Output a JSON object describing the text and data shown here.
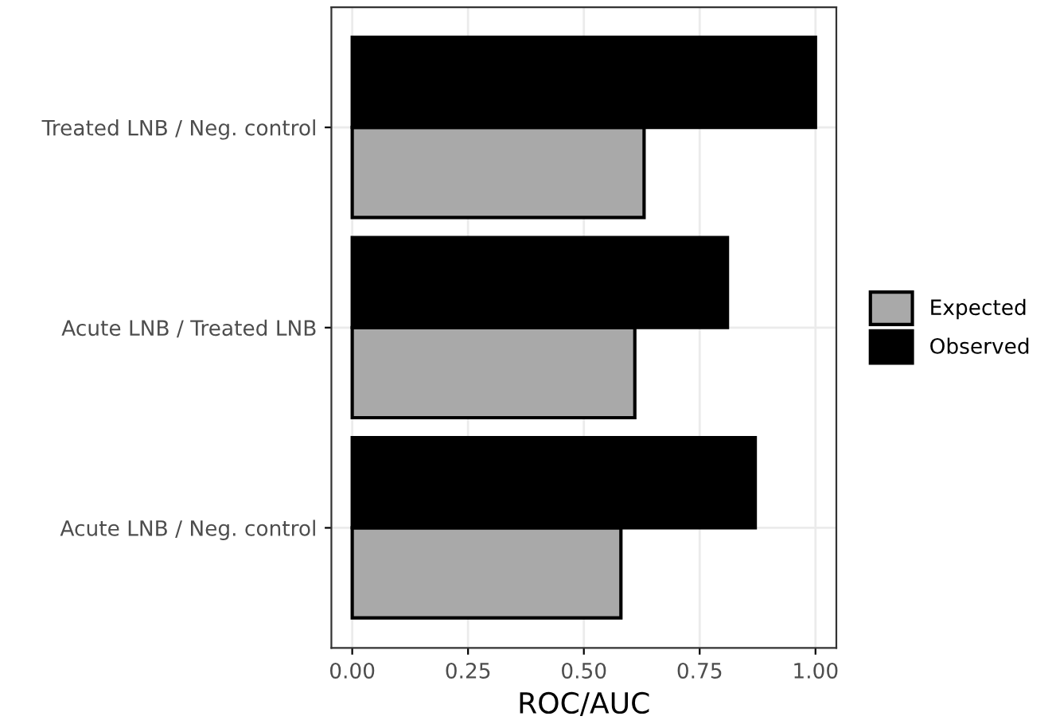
{
  "chart_data": {
    "type": "bar",
    "orientation": "horizontal",
    "xlabel": "ROC/AUC",
    "categories": [
      "Treated LNB / Neg. control",
      "Acute LNB / Treated LNB",
      "Acute LNB / Neg. control"
    ],
    "series": [
      {
        "name": "Expected",
        "color": "#a9a9a9",
        "values": [
          0.63,
          0.61,
          0.58
        ]
      },
      {
        "name": "Observed",
        "color": "#000000",
        "values": [
          1.0,
          0.81,
          0.87
        ]
      }
    ],
    "xlim": [
      -0.045,
      1.045
    ],
    "xticks": [
      {
        "value": 0,
        "label": "0.00"
      },
      {
        "value": 0.25,
        "label": "0.25"
      },
      {
        "value": 0.5,
        "label": "0.50"
      },
      {
        "value": 0.75,
        "label": "0.75"
      },
      {
        "value": 1,
        "label": "1.00"
      }
    ],
    "grid": true,
    "legend": "right"
  }
}
